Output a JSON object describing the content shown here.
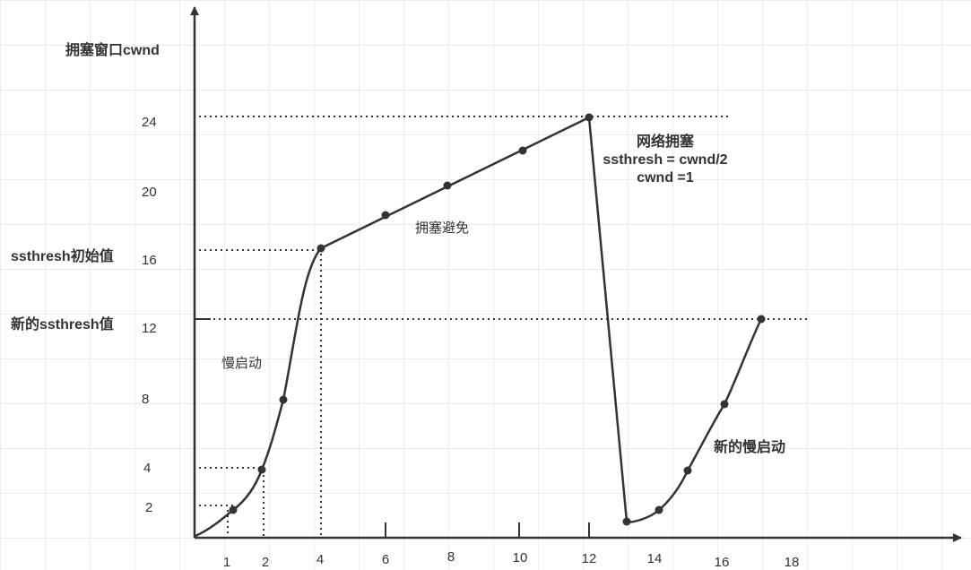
{
  "labels": {
    "y_axis_title": "拥塞窗口cwnd",
    "ssthresh_initial": "ssthresh初始值",
    "ssthresh_new": "新的ssthresh值",
    "slow_start": "慢启动",
    "congestion_avoidance": "拥塞避免",
    "congestion_event": {
      "line1": "网络拥塞",
      "line2": "ssthresh = cwnd/2",
      "line3": "cwnd =1"
    },
    "new_slow_start": "新的慢启动"
  },
  "y_ticks": [
    "24",
    "20",
    "16",
    "12",
    "8",
    "4",
    "2"
  ],
  "x_ticks": [
    "1",
    "2",
    "4",
    "6",
    "8",
    "10",
    "12",
    "14",
    "16",
    "18"
  ],
  "colors": {
    "line": "#333333",
    "grid": "#ececec",
    "background": "#ffffff"
  }
}
